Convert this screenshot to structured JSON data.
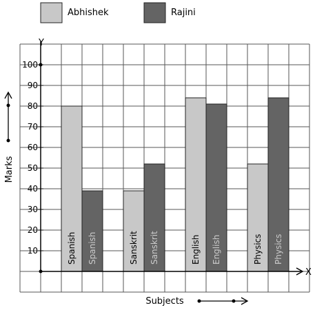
{
  "chart_data": {
    "type": "bar",
    "title": "",
    "xlabel": "Subjects",
    "ylabel": "Marks",
    "y_axis_letter": "Y",
    "x_axis_letter": "X",
    "categories": [
      "Spanish",
      "Sanskrit",
      "English",
      "Physics"
    ],
    "series": [
      {
        "name": "Abhishek",
        "color": "#c8c8c8",
        "values": [
          80,
          39,
          84,
          52
        ]
      },
      {
        "name": "Rajini",
        "color": "#646464",
        "values": [
          39,
          52,
          81,
          84
        ]
      }
    ],
    "ylim": [
      0,
      110
    ],
    "yticks": [
      "10",
      "20",
      "30",
      "40",
      "50",
      "60",
      "70",
      "80",
      "90",
      "100"
    ],
    "grid": true,
    "legend_position": "top-left"
  }
}
